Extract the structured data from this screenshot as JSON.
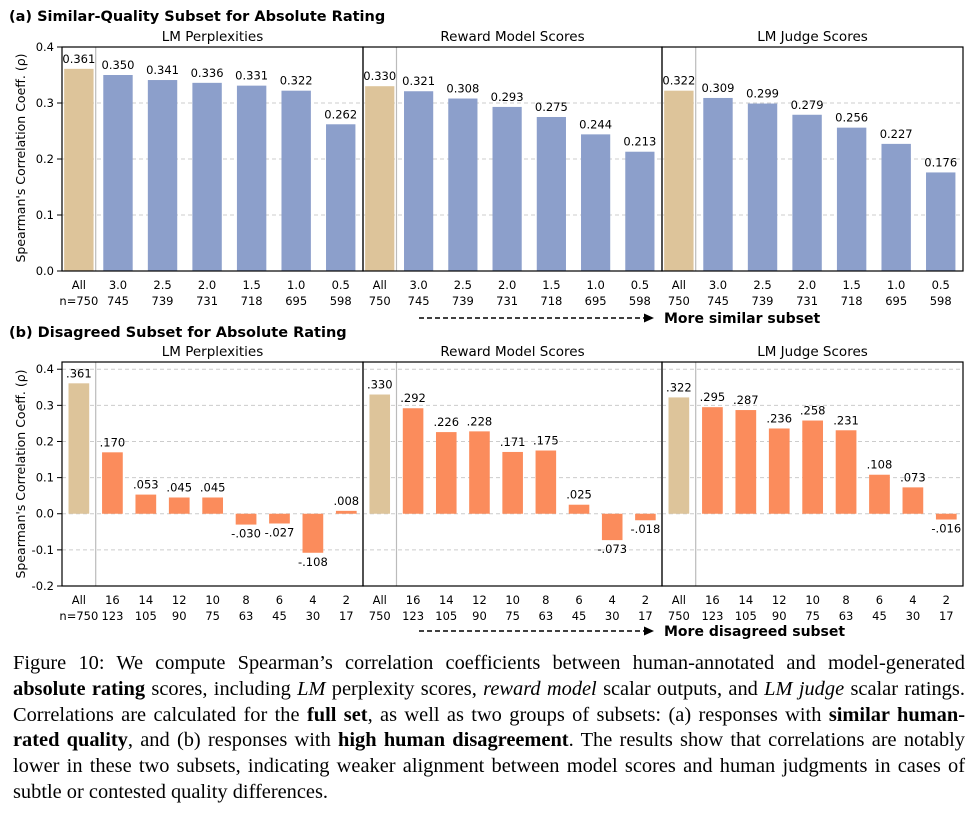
{
  "figure": {
    "ylabel": "Spearman's Correlation Coeff. (ρ)",
    "colors": {
      "all_bar": "#ddc49a",
      "blue_bar": "#8c9fcb",
      "orange_bar": "#fb8c5c",
      "grid": "#cccccc",
      "divider": "#bbbbbb"
    },
    "rows": [
      {
        "title": "(a) Similar-Quality Subset for Absolute Rating",
        "arrow_label": "More similar subset",
        "ylim": [
          0,
          0.4
        ],
        "yticks": [
          0.0,
          0.1,
          0.2,
          0.3,
          0.4
        ],
        "ytick_labels": [
          "0.0",
          "0.1",
          "0.2",
          "0.3",
          "0.4"
        ],
        "panels": [
          {
            "title": "LM Perplexities",
            "x_labels": [
              "All",
              "3.0",
              "2.5",
              "2.0",
              "1.5",
              "1.0",
              "0.5"
            ],
            "n_labels": [
              "n=750",
              "745",
              "739",
              "731",
              "718",
              "695",
              "598"
            ],
            "values": [
              0.361,
              0.35,
              0.341,
              0.336,
              0.331,
              0.322,
              0.262
            ],
            "value_labels": [
              "0.361",
              "0.350",
              "0.341",
              "0.336",
              "0.331",
              "0.322",
              "0.262"
            ]
          },
          {
            "title": "Reward Model Scores",
            "x_labels": [
              "All",
              "3.0",
              "2.5",
              "2.0",
              "1.5",
              "1.0",
              "0.5"
            ],
            "n_labels": [
              "750",
              "745",
              "739",
              "731",
              "718",
              "695",
              "598"
            ],
            "values": [
              0.33,
              0.321,
              0.308,
              0.293,
              0.275,
              0.244,
              0.213
            ],
            "value_labels": [
              "0.330",
              "0.321",
              "0.308",
              "0.293",
              "0.275",
              "0.244",
              "0.213"
            ]
          },
          {
            "title": "LM Judge Scores",
            "x_labels": [
              "All",
              "3.0",
              "2.5",
              "2.0",
              "1.5",
              "1.0",
              "0.5"
            ],
            "n_labels": [
              "750",
              "745",
              "739",
              "731",
              "718",
              "695",
              "598"
            ],
            "values": [
              0.322,
              0.309,
              0.299,
              0.279,
              0.256,
              0.227,
              0.176
            ],
            "value_labels": [
              "0.322",
              "0.309",
              "0.299",
              "0.279",
              "0.256",
              "0.227",
              "0.176"
            ]
          }
        ]
      },
      {
        "title": "(b) Disagreed Subset for Absolute Rating",
        "arrow_label": "More disagreed subset",
        "ylim": [
          -0.2,
          0.42
        ],
        "yticks": [
          -0.2,
          -0.1,
          0.0,
          0.1,
          0.2,
          0.3,
          0.4
        ],
        "ytick_labels": [
          "-0.2",
          "-0.1",
          "0.0",
          "0.1",
          "0.2",
          "0.3",
          "0.4"
        ],
        "panels": [
          {
            "title": "LM Perplexities",
            "x_labels": [
              "All",
              "16",
              "14",
              "12",
              "10",
              "8",
              "6",
              "4",
              "2"
            ],
            "n_labels": [
              "n=750",
              "123",
              "105",
              "90",
              "75",
              "63",
              "45",
              "30",
              "17"
            ],
            "values": [
              0.361,
              0.17,
              0.053,
              0.045,
              0.045,
              -0.03,
              -0.027,
              -0.108,
              0.008
            ],
            "value_labels": [
              ".361",
              ".170",
              ".053",
              ".045",
              ".045",
              "-.030",
              "-.027",
              "-.108",
              ".008"
            ]
          },
          {
            "title": "Reward Model Scores",
            "x_labels": [
              "All",
              "16",
              "14",
              "12",
              "10",
              "8",
              "6",
              "4",
              "2"
            ],
            "n_labels": [
              "750",
              "123",
              "105",
              "90",
              "75",
              "63",
              "45",
              "30",
              "17"
            ],
            "values": [
              0.33,
              0.292,
              0.226,
              0.228,
              0.171,
              0.175,
              0.025,
              -0.073,
              -0.018
            ],
            "value_labels": [
              ".330",
              ".292",
              ".226",
              ".228",
              ".171",
              ".175",
              ".025",
              "-.073",
              "-.018"
            ]
          },
          {
            "title": "LM Judge Scores",
            "x_labels": [
              "All",
              "16",
              "14",
              "12",
              "10",
              "8",
              "6",
              "4",
              "2"
            ],
            "n_labels": [
              "750",
              "123",
              "105",
              "90",
              "75",
              "63",
              "45",
              "30",
              "17"
            ],
            "values": [
              0.322,
              0.295,
              0.287,
              0.236,
              0.258,
              0.231,
              0.108,
              0.073,
              -0.016
            ],
            "value_labels": [
              ".322",
              ".295",
              ".287",
              ".236",
              ".258",
              ".231",
              ".108",
              ".073",
              "-.016"
            ]
          }
        ]
      }
    ]
  },
  "caption": {
    "fig_label": "Figure 10:",
    "t1": "We compute Spearman’s correlation coefficients between human-annotated and model-generated",
    "b1": "absolute rating",
    "t2": "scores, including",
    "i1": "LM",
    "t3": "perplexity scores,",
    "i2": "reward model",
    "t4": "scalar outputs, and",
    "i3": "LM judge",
    "t5": "scalar ratings. Correlations are calculated for the",
    "b2": "full set",
    "t6": ", as well as two groups of subsets: (a) responses with",
    "b3": "similar human-rated quality",
    "t7": ", and (b) responses with",
    "b4": "high human disagreement",
    "t8": ". The results show that correlations are notably lower in these two subsets, indicating weaker alignment between model scores and human judgments in cases of subtle or contested quality differences."
  },
  "chart_data": [
    {
      "type": "bar",
      "title": "(a) Similar-Quality Subset for Absolute Rating — LM Perplexities",
      "ylabel": "Spearman's Correlation Coeff. (ρ)",
      "ylim": [
        0,
        0.4
      ],
      "categories": [
        "All",
        "3.0",
        "2.5",
        "2.0",
        "1.5",
        "1.0",
        "0.5"
      ],
      "values": [
        0.361,
        0.35,
        0.341,
        0.336,
        0.331,
        0.322,
        0.262
      ]
    },
    {
      "type": "bar",
      "title": "(a) Similar-Quality Subset for Absolute Rating — Reward Model Scores",
      "ylim": [
        0,
        0.4
      ],
      "categories": [
        "All",
        "3.0",
        "2.5",
        "2.0",
        "1.5",
        "1.0",
        "0.5"
      ],
      "values": [
        0.33,
        0.321,
        0.308,
        0.293,
        0.275,
        0.244,
        0.213
      ]
    },
    {
      "type": "bar",
      "title": "(a) Similar-Quality Subset for Absolute Rating — LM Judge Scores",
      "ylim": [
        0,
        0.4
      ],
      "categories": [
        "All",
        "3.0",
        "2.5",
        "2.0",
        "1.5",
        "1.0",
        "0.5"
      ],
      "values": [
        0.322,
        0.309,
        0.299,
        0.279,
        0.256,
        0.227,
        0.176
      ]
    },
    {
      "type": "bar",
      "title": "(b) Disagreed Subset for Absolute Rating — LM Perplexities",
      "ylabel": "Spearman's Correlation Coeff. (ρ)",
      "ylim": [
        -0.2,
        0.42
      ],
      "categories": [
        "All",
        "16",
        "14",
        "12",
        "10",
        "8",
        "6",
        "4",
        "2"
      ],
      "values": [
        0.361,
        0.17,
        0.053,
        0.045,
        0.045,
        -0.03,
        -0.027,
        -0.108,
        0.008
      ]
    },
    {
      "type": "bar",
      "title": "(b) Disagreed Subset for Absolute Rating — Reward Model Scores",
      "ylim": [
        -0.2,
        0.42
      ],
      "categories": [
        "All",
        "16",
        "14",
        "12",
        "10",
        "8",
        "6",
        "4",
        "2"
      ],
      "values": [
        0.33,
        0.292,
        0.226,
        0.228,
        0.171,
        0.175,
        0.025,
        -0.073,
        -0.018
      ]
    },
    {
      "type": "bar",
      "title": "(b) Disagreed Subset for Absolute Rating — LM Judge Scores",
      "ylim": [
        -0.2,
        0.42
      ],
      "categories": [
        "All",
        "16",
        "14",
        "12",
        "10",
        "8",
        "6",
        "4",
        "2"
      ],
      "values": [
        0.322,
        0.295,
        0.287,
        0.236,
        0.258,
        0.231,
        0.108,
        0.073,
        -0.016
      ]
    }
  ]
}
